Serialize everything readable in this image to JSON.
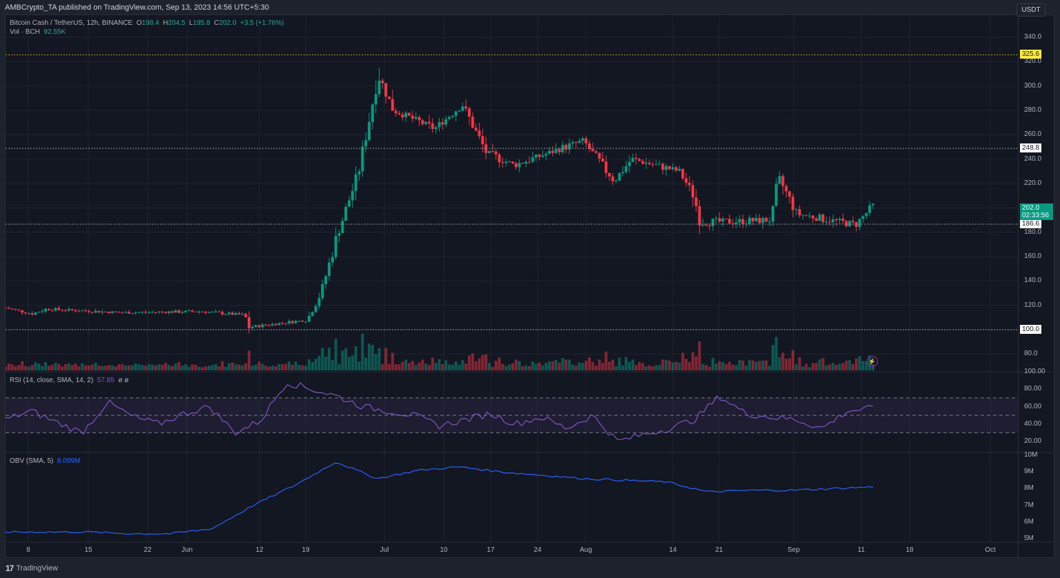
{
  "header": {
    "published": "AMBCrypto_TA published on TradingView.com, Sep 13, 2023 14:56 UTC+5:30"
  },
  "legend": {
    "symbol": "Bitcoin Cash / TetherUS, 12h, BINANCE",
    "o_label": "O",
    "o": "198.4",
    "h_label": "H",
    "h": "204.5",
    "l_label": "L",
    "l": "195.8",
    "c_label": "C",
    "c": "202.0",
    "change": "+3.5 (+1.76%)",
    "vol_label": "Vol · BCH",
    "vol": "92.55K",
    "rsi_label": "RSI (14, close, SMA, 14, 2)",
    "rsi_value": "57.85",
    "rsi_extra": "ø  ø",
    "obv_label": "OBV (SMA, 5)",
    "obv_value": "8.099M"
  },
  "price_axis": {
    "currency": "USDT",
    "ticks": [
      "340.0",
      "320.0",
      "300.0",
      "280.0",
      "260.0",
      "240.0",
      "220.0",
      "200.0",
      "180.0",
      "160.0",
      "140.0",
      "120.0",
      "100.0",
      "80.0"
    ],
    "levels": [
      {
        "value": "325.6",
        "style": "yellow"
      },
      {
        "value": "248.8",
        "style": "white"
      },
      {
        "value": "186.6",
        "style": "white"
      },
      {
        "value": "100.0",
        "style": "white"
      }
    ],
    "last_price": "202.0",
    "countdown": "02:33:56"
  },
  "rsi_axis": {
    "ticks": [
      "100.00",
      "80.00",
      "60.00",
      "40.00",
      "20.00"
    ]
  },
  "obv_axis": {
    "ticks": [
      "10M",
      "9M",
      "8M",
      "7M",
      "6M",
      "5M"
    ]
  },
  "time_axis": {
    "labels": [
      "8",
      "15",
      "22",
      "Jun",
      "12",
      "19",
      "Jul",
      "10",
      "17",
      "24",
      "Aug",
      "14",
      "21",
      "Sep",
      "11",
      "18",
      "Oct"
    ]
  },
  "footer": {
    "brand": "TradingView"
  },
  "colors": {
    "up": "#089981",
    "down": "#f23645",
    "rsi": "#7e57c2",
    "obv": "#2962ff",
    "level_yellow": "#ffeb3b",
    "bg": "#131722"
  },
  "chart_data": {
    "type": "candlestick",
    "title": "Bitcoin Cash / TetherUS, 12h, BINANCE",
    "ylabel": "USDT",
    "ylim": [
      70,
      345
    ],
    "x_tick_labels": [
      "8",
      "15",
      "22",
      "Jun",
      "12",
      "19",
      "Jul",
      "10",
      "17",
      "24",
      "Aug",
      "14",
      "21",
      "Sep",
      "11",
      "18",
      "Oct"
    ],
    "horizontal_levels": [
      325.6,
      248.8,
      186.6,
      100.0
    ],
    "last": {
      "open": 198.4,
      "high": 204.5,
      "low": 195.8,
      "close": 202.0,
      "change": 3.5,
      "change_pct": 1.76,
      "volume": "92.55K"
    },
    "approx_close_path": [
      {
        "date": "May 5",
        "close": 118
      },
      {
        "date": "May 9",
        "close": 113
      },
      {
        "date": "May 12",
        "close": 117
      },
      {
        "date": "May 22",
        "close": 114
      },
      {
        "date": "Jun 1",
        "close": 115
      },
      {
        "date": "Jun 9",
        "close": 112
      },
      {
        "date": "Jun 10",
        "close": 102
      },
      {
        "date": "Jun 18",
        "close": 108
      },
      {
        "date": "Jun 20",
        "close": 130
      },
      {
        "date": "Jun 23",
        "close": 180
      },
      {
        "date": "Jun 26",
        "close": 230
      },
      {
        "date": "Jun 30",
        "close": 310
      },
      {
        "date": "Jul 2",
        "close": 280
      },
      {
        "date": "Jul 8",
        "close": 265
      },
      {
        "date": "Jul 12",
        "close": 285
      },
      {
        "date": "Jul 16",
        "close": 245
      },
      {
        "date": "Jul 20",
        "close": 235
      },
      {
        "date": "Jul 31",
        "close": 255
      },
      {
        "date": "Aug 5",
        "close": 222
      },
      {
        "date": "Aug 8",
        "close": 240
      },
      {
        "date": "Aug 14",
        "close": 230
      },
      {
        "date": "Aug 17",
        "close": 210
      },
      {
        "date": "Aug 18",
        "close": 188
      },
      {
        "date": "Aug 29",
        "close": 190
      },
      {
        "date": "Aug 30",
        "close": 225
      },
      {
        "date": "Sep 2",
        "close": 195
      },
      {
        "date": "Sep 10",
        "close": 186
      },
      {
        "date": "Sep 12",
        "close": 202
      }
    ],
    "rsi": {
      "range": [
        0,
        100
      ],
      "bands": [
        30,
        50,
        70
      ],
      "last": 57.85,
      "approx_path": [
        45,
        55,
        42,
        30,
        65,
        48,
        40,
        52,
        60,
        30,
        44,
        88,
        80,
        72,
        60,
        55,
        50,
        38,
        45,
        52,
        40,
        48,
        35,
        50,
        20,
        28,
        35,
        45,
        72,
        52,
        48,
        45,
        35,
        55,
        58
      ]
    },
    "obv": {
      "range_m": [
        5,
        10
      ],
      "last_m": 8.099,
      "approx_path_m": [
        5.4,
        5.4,
        5.4,
        5.3,
        5.3,
        5.6,
        7.0,
        8.2,
        9.6,
        8.6,
        9.1,
        9.3,
        9.0,
        8.8,
        8.6,
        8.5,
        8.4,
        7.8,
        7.9,
        7.9,
        8.0,
        8.1
      ]
    }
  }
}
